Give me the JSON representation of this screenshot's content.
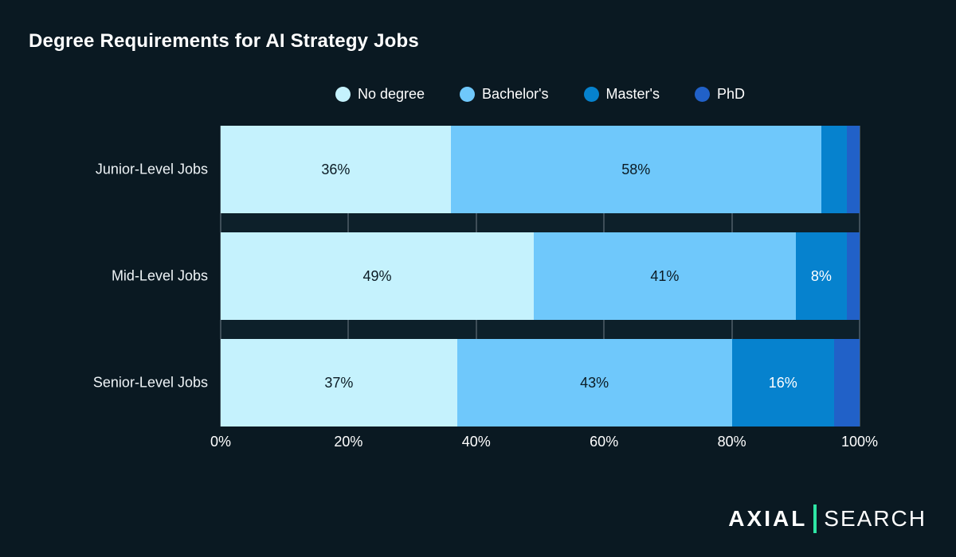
{
  "title": "Degree Requirements for AI Strategy Jobs",
  "chart_data": {
    "type": "bar",
    "orientation": "horizontal",
    "stacked": true,
    "title": "Degree Requirements for AI Strategy Jobs",
    "categories": [
      "Junior-Level Jobs",
      "Mid-Level Jobs",
      "Senior-Level Jobs"
    ],
    "series": [
      {
        "name": "No degree",
        "color": "#c5f2fd",
        "label_color": "#0b1b24",
        "values": [
          36,
          49,
          37
        ]
      },
      {
        "name": "Bachelor's",
        "color": "#6fc8fb",
        "label_color": "#0b1b24",
        "values": [
          58,
          41,
          43
        ]
      },
      {
        "name": "Master's",
        "color": "#0682ce",
        "label_color": "#ffffff",
        "values": [
          4,
          8,
          16
        ]
      },
      {
        "name": "PhD",
        "color": "#2161c8",
        "label_color": "#ffffff",
        "values": [
          2,
          2,
          4
        ]
      }
    ],
    "x_ticks": [
      "0%",
      "20%",
      "40%",
      "60%",
      "80%",
      "100%"
    ],
    "xlim": [
      0,
      100
    ],
    "value_suffix": "%",
    "min_label_value": 8,
    "legend_position": "top-center",
    "grid": "vertical",
    "colors": {
      "page_background": "#0a1922",
      "plot_background": "#0d202a",
      "gridline": "#3e4e58",
      "text": "#ffffff"
    }
  },
  "logo": {
    "left": "AXIAL",
    "right": "SEARCH",
    "divider_color": "#2ee5a4"
  }
}
